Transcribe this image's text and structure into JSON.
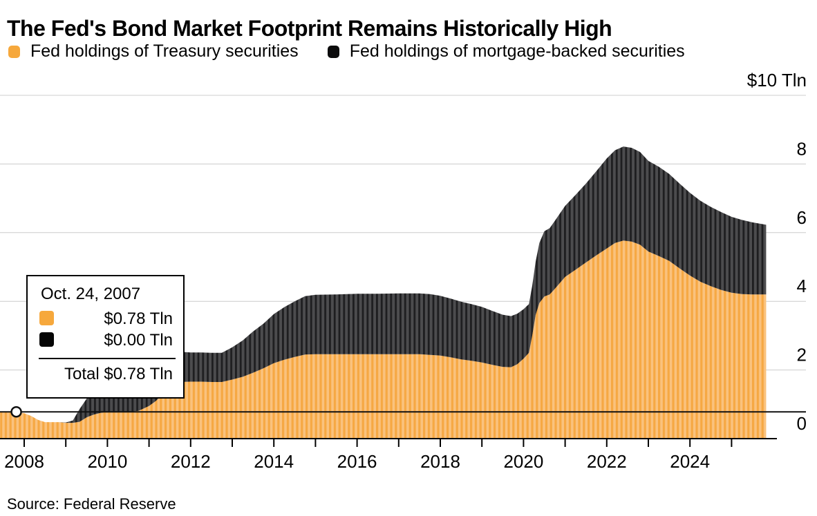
{
  "header": {
    "title": "The Fed's Bond Market Footprint Remains Historically High"
  },
  "legend": {
    "items": [
      {
        "label": "Fed holdings of Treasury securities",
        "color": "#F6A83C"
      },
      {
        "label": "Fed holdings of mortgage-backed securities",
        "color": "#0B0B0C"
      }
    ]
  },
  "tooltip": {
    "date": "Oct. 24, 2007",
    "treasury_value": "$0.78 Tln",
    "mbs_value": "$0.00 Tln",
    "total_value": "Total $0.78 Tln"
  },
  "source": {
    "text": "Source: Federal Reserve"
  },
  "chart_data": {
    "type": "area",
    "stacked": true,
    "title": "The Fed's Bond Market Footprint Remains Historically High",
    "ylabel": "$ Tln",
    "unit_label": "$10 Tln",
    "ylim": [
      0,
      10
    ],
    "x_start": 2007.42,
    "x_end": 2025.83,
    "grid": true,
    "legend_position": "top",
    "y_ticks": [
      {
        "value": 10,
        "label": "$10 Tln"
      },
      {
        "value": 8,
        "label": "8"
      },
      {
        "value": 6,
        "label": "6"
      },
      {
        "value": 4,
        "label": "4"
      },
      {
        "value": 2,
        "label": "2"
      },
      {
        "value": 0,
        "label": "0"
      }
    ],
    "x_tick_years": [
      2008,
      2009,
      2010,
      2011,
      2012,
      2013,
      2014,
      2015,
      2016,
      2017,
      2018,
      2019,
      2020,
      2021,
      2022,
      2023,
      2024,
      2025
    ],
    "x_label_years": [
      "2008",
      "2010",
      "2012",
      "2014",
      "2016",
      "2018",
      "2020",
      "2022",
      "2024"
    ],
    "hover_point": {
      "x": 2007.81,
      "date": "Oct. 24, 2007",
      "treasury": 0.78,
      "mbs": 0.0,
      "total": 0.78
    },
    "colors": {
      "treasury_base": "#FAC27E",
      "treasury_stripe": "#F6A843",
      "mbs_base": "#4C4C4E",
      "mbs_stripe": "#1E1E20",
      "gridline": "#CCCCCC",
      "axis": "#000000",
      "crosshair": "#111111"
    },
    "x": [
      2007.42,
      2007.81,
      2008.0,
      2008.17,
      2008.33,
      2008.5,
      2008.67,
      2008.83,
      2009.0,
      2009.17,
      2009.33,
      2009.5,
      2009.67,
      2009.83,
      2010.0,
      2010.25,
      2010.5,
      2010.75,
      2011.0,
      2011.17,
      2011.33,
      2011.5,
      2011.75,
      2012.0,
      2012.25,
      2012.5,
      2012.75,
      2013.0,
      2013.25,
      2013.5,
      2013.75,
      2014.0,
      2014.25,
      2014.5,
      2014.75,
      2015.0,
      2015.5,
      2016.0,
      2016.5,
      2017.0,
      2017.5,
      2017.75,
      2018.0,
      2018.25,
      2018.5,
      2018.75,
      2019.0,
      2019.25,
      2019.5,
      2019.7,
      2019.85,
      2020.0,
      2020.13,
      2020.21,
      2020.29,
      2020.38,
      2020.5,
      2020.63,
      2020.75,
      2021.0,
      2021.25,
      2021.5,
      2021.75,
      2022.0,
      2022.2,
      2022.4,
      2022.6,
      2022.8,
      2023.0,
      2023.25,
      2023.5,
      2023.75,
      2024.0,
      2024.25,
      2024.5,
      2024.75,
      2025.0,
      2025.25,
      2025.5,
      2025.83
    ],
    "series": [
      {
        "name": "Fed holdings of Treasury securities",
        "values": [
          0.79,
          0.78,
          0.74,
          0.66,
          0.55,
          0.48,
          0.48,
          0.48,
          0.46,
          0.46,
          0.49,
          0.62,
          0.7,
          0.75,
          0.78,
          0.77,
          0.78,
          0.81,
          0.95,
          1.1,
          1.3,
          1.56,
          1.65,
          1.66,
          1.66,
          1.65,
          1.65,
          1.72,
          1.8,
          1.92,
          2.05,
          2.2,
          2.3,
          2.38,
          2.45,
          2.46,
          2.46,
          2.46,
          2.46,
          2.46,
          2.46,
          2.44,
          2.42,
          2.37,
          2.31,
          2.27,
          2.22,
          2.15,
          2.09,
          2.08,
          2.17,
          2.33,
          2.5,
          3.0,
          3.6,
          3.95,
          4.14,
          4.2,
          4.36,
          4.71,
          4.92,
          5.13,
          5.34,
          5.54,
          5.7,
          5.77,
          5.74,
          5.65,
          5.45,
          5.32,
          5.18,
          4.96,
          4.75,
          4.57,
          4.44,
          4.33,
          4.25,
          4.21,
          4.2,
          4.2
        ]
      },
      {
        "name": "Fed holdings of mortgage-backed securities",
        "values": [
          0,
          0,
          0,
          0,
          0,
          0,
          0,
          0,
          0.01,
          0.07,
          0.37,
          0.54,
          0.63,
          0.69,
          0.91,
          1.03,
          1.1,
          1.08,
          1.01,
          0.98,
          0.95,
          0.91,
          0.88,
          0.85,
          0.85,
          0.85,
          0.85,
          0.94,
          1.06,
          1.2,
          1.3,
          1.43,
          1.53,
          1.62,
          1.7,
          1.73,
          1.74,
          1.76,
          1.76,
          1.77,
          1.77,
          1.77,
          1.74,
          1.71,
          1.68,
          1.65,
          1.62,
          1.57,
          1.52,
          1.49,
          1.47,
          1.44,
          1.42,
          1.45,
          1.55,
          1.75,
          1.9,
          1.93,
          1.98,
          2.07,
          2.18,
          2.3,
          2.45,
          2.62,
          2.7,
          2.74,
          2.73,
          2.7,
          2.64,
          2.6,
          2.53,
          2.47,
          2.41,
          2.36,
          2.31,
          2.27,
          2.21,
          2.16,
          2.1,
          2.03
        ]
      }
    ]
  }
}
